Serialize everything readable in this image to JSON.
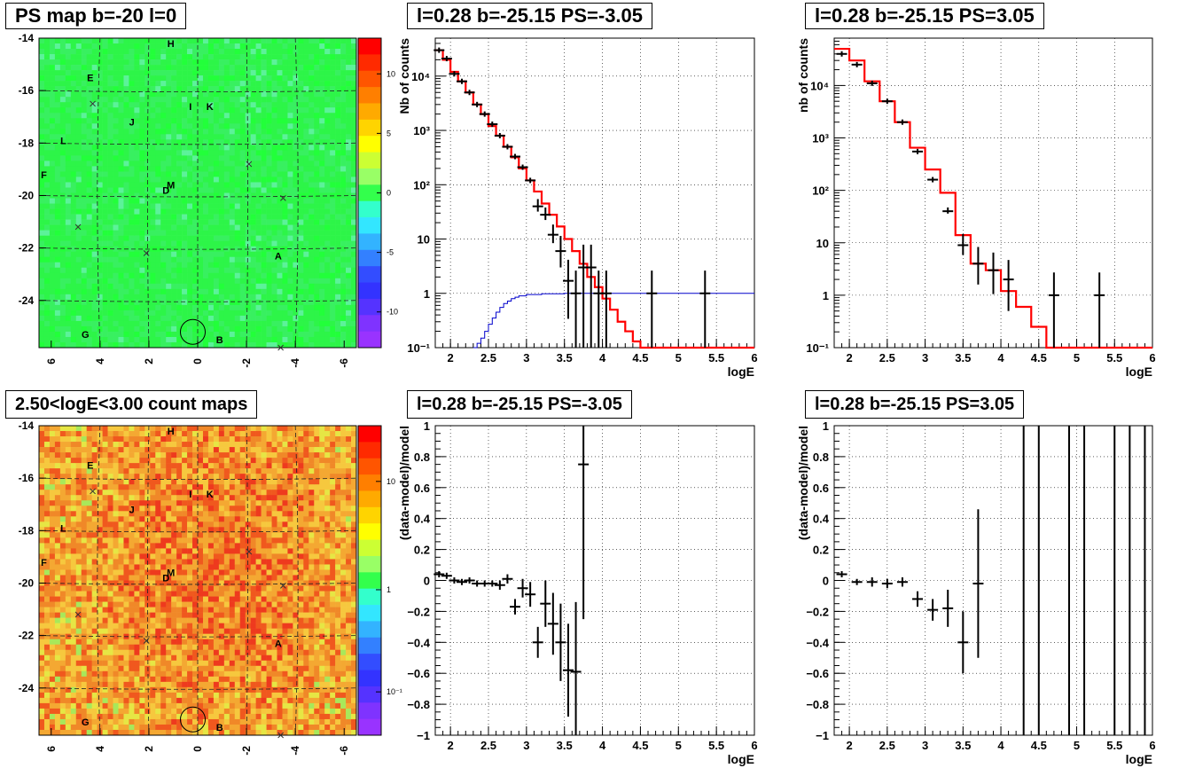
{
  "chart_data": [
    {
      "type": "heatmap",
      "title": "PS map b=-20 l=0",
      "x_ticks": [
        "6",
        "4",
        "2",
        "0",
        "-2",
        "-4",
        "-6"
      ],
      "y_ticks": [
        "-14",
        "-16",
        "-18",
        "-20",
        "-22",
        "-24"
      ],
      "x_range": [
        6.5,
        -6.5
      ],
      "y_range": [
        -25.8,
        -14
      ],
      "colorbar_ticks": [
        "10",
        "5",
        "0",
        "-5",
        "-10"
      ],
      "colorbar_range": [
        -13,
        13
      ],
      "colors": {
        "background": "#33ff4c",
        "palette": "rainbow"
      },
      "sources": [
        {
          "label": "H",
          "l": 1.1,
          "b": -14.2
        },
        {
          "label": "E",
          "l": 4.4,
          "b": -15.5
        },
        {
          "label": "I",
          "l": 0.3,
          "b": -16.6
        },
        {
          "label": "K",
          "l": -0.5,
          "b": -16.6
        },
        {
          "label": "J",
          "l": 2.7,
          "b": -17.2
        },
        {
          "label": "L",
          "l": 5.5,
          "b": -17.9
        },
        {
          "label": "F",
          "l": 6.3,
          "b": -19.2
        },
        {
          "label": "M",
          "l": 1.1,
          "b": -19.6
        },
        {
          "label": "D",
          "l": 1.3,
          "b": -19.8
        },
        {
          "label": "A",
          "l": -3.3,
          "b": -22.3
        },
        {
          "label": "G",
          "l": 4.6,
          "b": -25.3
        },
        {
          "label": "B",
          "l": -0.9,
          "b": -25.5
        }
      ],
      "crosses": [
        {
          "l": 4.3,
          "b": -16.5
        },
        {
          "l": -2.1,
          "b": -18.8
        },
        {
          "l": -3.5,
          "b": -20.1
        },
        {
          "l": 4.9,
          "b": -21.2
        },
        {
          "l": 2.1,
          "b": -22.2
        },
        {
          "l": -3.4,
          "b": -25.8
        }
      ],
      "circle": {
        "l": 0.2,
        "b": -25.2
      }
    },
    {
      "type": "line",
      "title": "l=0.28 b=-25.15 PS=-3.05",
      "xlabel": "logE",
      "ylabel": "Nb of counts",
      "xlim": [
        1.8,
        6
      ],
      "ylim": [
        0.1,
        50000
      ],
      "yscale": "log",
      "x_ticks": [
        "2",
        "2.5",
        "3",
        "3.5",
        "4",
        "4.5",
        "5",
        "5.5",
        "6"
      ],
      "y_ticks": [
        "10⁴",
        "10³",
        "10²",
        "10",
        "1",
        "10⁻¹"
      ],
      "grid": true,
      "series": [
        {
          "kind": "step",
          "color": "#ff0000",
          "x": [
            1.8,
            1.9,
            2.0,
            2.1,
            2.2,
            2.3,
            2.4,
            2.5,
            2.6,
            2.7,
            2.8,
            2.9,
            3.0,
            3.1,
            3.2,
            3.3,
            3.4,
            3.5,
            3.6,
            3.7,
            3.8,
            3.9,
            4.0,
            4.1,
            4.2,
            4.3,
            4.4,
            4.5,
            4.6,
            4.7,
            4.8,
            4.9,
            5.0,
            5.2,
            5.4,
            5.6,
            5.8,
            6.0
          ],
          "y": [
            30000,
            20000,
            12000,
            8000,
            5000,
            3000,
            2000,
            1200,
            800,
            500,
            320,
            200,
            120,
            75,
            45,
            28,
            17,
            10,
            6,
            3.5,
            2,
            1.3,
            0.8,
            0.5,
            0.3,
            0.2,
            0.13,
            0.1,
            0.1,
            0.1,
            0.1,
            0.1,
            0.1,
            0.1,
            0.1,
            0.1,
            0.1,
            0.1
          ]
        },
        {
          "kind": "step",
          "color": "#0000cc",
          "x": [
            2.3,
            2.35,
            2.4,
            2.45,
            2.5,
            2.55,
            2.6,
            2.65,
            2.7,
            2.75,
            2.8,
            2.85,
            2.9,
            3.0,
            3.2,
            3.5,
            4.0,
            5.0,
            6.0
          ],
          "y": [
            0.1,
            0.12,
            0.15,
            0.2,
            0.27,
            0.35,
            0.45,
            0.55,
            0.65,
            0.72,
            0.8,
            0.85,
            0.9,
            0.95,
            0.98,
            1.0,
            1.0,
            1.0,
            1.0
          ]
        },
        {
          "kind": "points",
          "color": "#000000",
          "x": [
            1.85,
            1.95,
            2.05,
            2.15,
            2.25,
            2.35,
            2.45,
            2.55,
            2.65,
            2.75,
            2.85,
            2.95,
            3.05,
            3.15,
            3.25,
            3.35,
            3.45,
            3.55,
            3.65,
            3.75,
            3.85,
            3.95,
            4.05,
            4.65,
            5.35
          ],
          "y": [
            30000,
            21000,
            11000,
            8000,
            5000,
            3000,
            2000,
            1300,
            800,
            500,
            330,
            210,
            120,
            40,
            28,
            12,
            6,
            1.7,
            1,
            3,
            3,
            1,
            1,
            1,
            1
          ],
          "err": [
            0,
            0,
            0,
            0,
            0,
            0,
            0,
            0,
            0,
            0,
            0,
            0,
            0,
            0.2,
            0.2,
            0.3,
            0.5,
            0.8,
            0.9,
            0.9,
            0.9,
            0.9,
            0.9,
            0.9,
            0.9
          ]
        }
      ]
    },
    {
      "type": "line",
      "title": "l=0.28 b=-25.15 PS=3.05",
      "xlabel": "logE",
      "ylabel": "nb of counts",
      "xlim": [
        1.8,
        6
      ],
      "ylim": [
        0.1,
        80000
      ],
      "yscale": "log",
      "x_ticks": [
        "2",
        "2.5",
        "3",
        "3.5",
        "4",
        "4.5",
        "5",
        "5.5",
        "6"
      ],
      "y_ticks": [
        "10⁴",
        "10³",
        "10²",
        "10",
        "1",
        "10⁻¹"
      ],
      "grid": true,
      "series": [
        {
          "kind": "step",
          "color": "#ff0000",
          "x": [
            1.8,
            2.0,
            2.2,
            2.4,
            2.6,
            2.8,
            3.0,
            3.2,
            3.4,
            3.6,
            3.8,
            4.0,
            4.2,
            4.4,
            4.6,
            4.8,
            5.0,
            5.2,
            5.4,
            5.6,
            5.8,
            6.0
          ],
          "y": [
            50000,
            30000,
            12000,
            5000,
            2000,
            650,
            250,
            90,
            14,
            4,
            3,
            1.2,
            0.6,
            0.25,
            0.1,
            0.1,
            0.1,
            0.1,
            0.1,
            0.1,
            0.1,
            0.1
          ]
        },
        {
          "kind": "points",
          "color": "#000000",
          "x": [
            1.9,
            2.1,
            2.3,
            2.5,
            2.7,
            2.9,
            3.1,
            3.3,
            3.5,
            3.7,
            3.9,
            4.1,
            4.7,
            5.3
          ],
          "y": [
            40000,
            25000,
            11000,
            5000,
            2000,
            550,
            160,
            40,
            9,
            4,
            3,
            2,
            1,
            1
          ],
          "err": [
            0,
            0,
            0,
            0,
            0,
            0,
            0,
            0.1,
            0.35,
            0.6,
            0.65,
            0.75,
            0.95,
            0.95
          ]
        }
      ]
    },
    {
      "type": "heatmap",
      "title": "2.50<logE<3.00 count maps",
      "x_ticks": [
        "6",
        "4",
        "2",
        "0",
        "-2",
        "-4",
        "-6"
      ],
      "y_ticks": [
        "-14",
        "-16",
        "-18",
        "-20",
        "-22",
        "-24"
      ],
      "x_range": [
        6.5,
        -6.5
      ],
      "y_range": [
        -25.8,
        -14
      ],
      "colorbar_ticks": [
        "10",
        "1",
        "10⁻¹"
      ],
      "colorbar_scale": "log",
      "colors": {
        "background": "#f0a030",
        "palette": "rainbow"
      },
      "sources": [
        {
          "label": "H",
          "l": 1.1,
          "b": -14.2
        },
        {
          "label": "E",
          "l": 4.4,
          "b": -15.5
        },
        {
          "label": "I",
          "l": 0.3,
          "b": -16.6
        },
        {
          "label": "K",
          "l": -0.5,
          "b": -16.6
        },
        {
          "label": "J",
          "l": 2.7,
          "b": -17.2
        },
        {
          "label": "L",
          "l": 5.5,
          "b": -17.9
        },
        {
          "label": "F",
          "l": 6.3,
          "b": -19.2
        },
        {
          "label": "M",
          "l": 1.1,
          "b": -19.6
        },
        {
          "label": "D",
          "l": 1.3,
          "b": -19.8
        },
        {
          "label": "A",
          "l": -3.3,
          "b": -22.3
        },
        {
          "label": "G",
          "l": 4.6,
          "b": -25.3
        },
        {
          "label": "B",
          "l": -0.9,
          "b": -25.5
        }
      ],
      "crosses": [
        {
          "l": 4.3,
          "b": -16.5
        },
        {
          "l": -2.1,
          "b": -18.8
        },
        {
          "l": -3.5,
          "b": -20.1
        },
        {
          "l": 4.9,
          "b": -21.2
        },
        {
          "l": 2.1,
          "b": -22.2
        },
        {
          "l": -3.4,
          "b": -25.8
        }
      ],
      "circle": {
        "l": 0.2,
        "b": -25.2
      }
    },
    {
      "type": "scatter",
      "title": "l=0.28 b=-25.15 PS=-3.05",
      "xlabel": "logE",
      "ylabel": "(data-model)/model",
      "xlim": [
        1.8,
        6
      ],
      "ylim": [
        -1,
        1
      ],
      "x_ticks": [
        "2",
        "2.5",
        "3",
        "3.5",
        "4",
        "4.5",
        "5",
        "5.5",
        "6"
      ],
      "y_ticks": [
        "1",
        "0.8",
        "0.6",
        "0.4",
        "0.2",
        "0",
        "−0.2",
        "−0.4",
        "−0.6",
        "−0.8",
        "−1"
      ],
      "grid": true,
      "series": [
        {
          "kind": "points",
          "color": "#000000",
          "x": [
            1.85,
            1.95,
            2.05,
            2.15,
            2.25,
            2.35,
            2.45,
            2.55,
            2.65,
            2.75,
            2.85,
            2.95,
            3.05,
            3.15,
            3.25,
            3.35,
            3.45,
            3.55,
            3.65,
            3.75
          ],
          "y": [
            0.04,
            0.03,
            0.0,
            -0.01,
            0.0,
            -0.02,
            -0.02,
            -0.02,
            -0.03,
            0.01,
            -0.17,
            -0.05,
            -0.09,
            -0.4,
            -0.15,
            -0.28,
            -0.4,
            -0.58,
            -0.59,
            0.75
          ],
          "err": [
            0.02,
            0.02,
            0.02,
            0.02,
            0.02,
            0.02,
            0.02,
            0.02,
            0.03,
            0.03,
            0.05,
            0.06,
            0.08,
            0.1,
            0.15,
            0.2,
            0.25,
            0.3,
            0.45,
            1.0
          ]
        }
      ]
    },
    {
      "type": "scatter",
      "title": "l=0.28 b=-25.15 PS=3.05",
      "xlabel": "logE",
      "ylabel": "(data-model)/model",
      "xlim": [
        1.8,
        6
      ],
      "ylim": [
        -1,
        1
      ],
      "x_ticks": [
        "2",
        "2.5",
        "3",
        "3.5",
        "4",
        "4.5",
        "5",
        "5.5",
        "6"
      ],
      "y_ticks": [
        "1",
        "0.8",
        "0.6",
        "0.4",
        "0.2",
        "0",
        "−0.2",
        "−0.4",
        "−0.6",
        "−0.8",
        "−1"
      ],
      "grid": true,
      "series": [
        {
          "kind": "points",
          "color": "#000000",
          "x": [
            1.9,
            2.1,
            2.3,
            2.5,
            2.7,
            2.9,
            3.1,
            3.3,
            3.5,
            3.7
          ],
          "y": [
            0.04,
            -0.01,
            -0.01,
            -0.02,
            -0.01,
            -0.12,
            -0.19,
            -0.18,
            -0.4,
            -0.02
          ],
          "err": [
            0.02,
            0.02,
            0.03,
            0.03,
            0.03,
            0.05,
            0.07,
            0.12,
            0.2,
            0.48
          ]
        },
        {
          "kind": "vlines",
          "color": "#000000",
          "x": [
            4.3,
            4.5,
            4.9,
            5.1,
            5.5,
            5.7,
            5.9
          ]
        }
      ]
    }
  ]
}
